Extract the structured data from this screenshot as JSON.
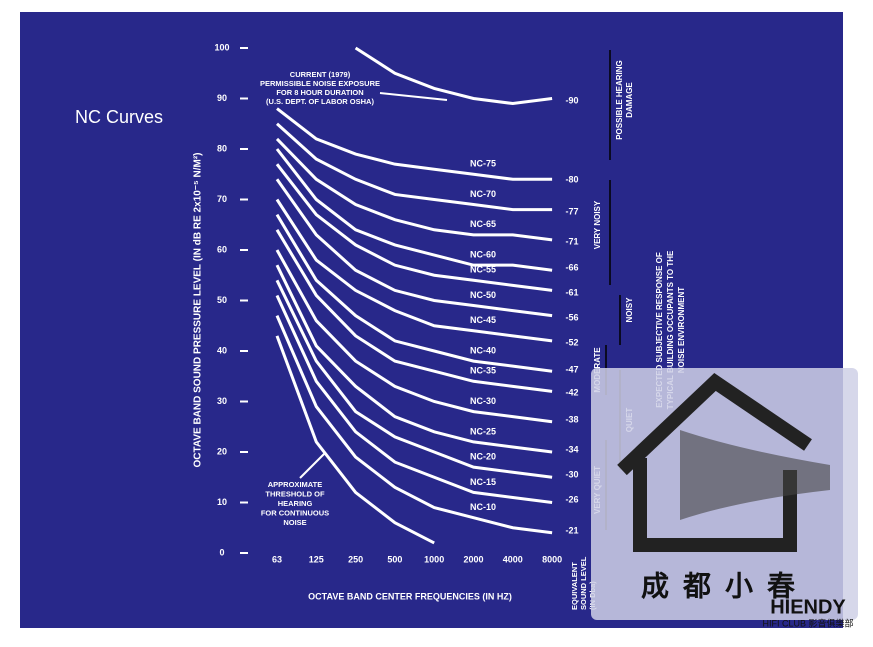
{
  "chart_data": {
    "type": "line",
    "title": "NC Curves",
    "x_label": "OCTAVE BAND CENTER FREQUENCIES (IN HZ)",
    "y_label": "OCTAVE BAND SOUND PRESSURE LEVEL (IN dB RE 2x10⁻⁵ N/M²)",
    "categories": [
      "63",
      "125",
      "250",
      "500",
      "1000",
      "2000",
      "4000",
      "8000"
    ],
    "ylim": [
      0,
      100
    ],
    "yticks": [
      0,
      10,
      20,
      30,
      40,
      50,
      60,
      70,
      80,
      90,
      100
    ],
    "series": [
      {
        "name": "NC-75",
        "color": "#ffffff",
        "values": [
          88,
          82,
          79,
          77,
          76,
          75,
          74,
          74
        ]
      },
      {
        "name": "NC-70",
        "color": "#ffffff",
        "values": [
          85,
          78,
          74,
          71,
          70,
          69,
          68,
          68
        ]
      },
      {
        "name": "NC-65",
        "color": "#ffffff",
        "values": [
          82,
          74,
          69,
          66,
          64,
          63,
          63,
          62
        ]
      },
      {
        "name": "NC-60",
        "color": "#ffffff",
        "values": [
          80,
          70,
          64,
          61,
          59,
          57,
          57,
          56
        ]
      },
      {
        "name": "NC-55",
        "color": "#ffffff",
        "values": [
          77,
          67,
          61,
          57,
          55,
          54,
          53,
          52
        ]
      },
      {
        "name": "NC-50",
        "color": "#ffffff",
        "values": [
          74,
          63,
          56,
          52,
          50,
          49,
          48,
          47
        ]
      },
      {
        "name": "NC-45",
        "color": "#ffffff",
        "values": [
          70,
          58,
          52,
          48,
          45,
          44,
          43,
          42
        ]
      },
      {
        "name": "NC-40",
        "color": "#ffffff",
        "values": [
          67,
          54,
          47,
          42,
          40,
          38,
          37,
          36
        ]
      },
      {
        "name": "NC-35",
        "color": "#ffffff",
        "values": [
          64,
          51,
          43,
          38,
          36,
          34,
          33,
          32
        ]
      },
      {
        "name": "NC-30",
        "color": "#ffffff",
        "values": [
          60,
          46,
          38,
          33,
          30,
          28,
          27,
          26
        ]
      },
      {
        "name": "NC-25",
        "color": "#ffffff",
        "values": [
          57,
          41,
          33,
          27,
          24,
          22,
          21,
          20
        ]
      },
      {
        "name": "NC-20",
        "color": "#ffffff",
        "values": [
          54,
          38,
          28,
          23,
          20,
          17,
          16,
          15
        ]
      },
      {
        "name": "NC-15",
        "color": "#ffffff",
        "values": [
          51,
          34,
          24,
          18,
          15,
          12,
          11,
          10
        ]
      },
      {
        "name": "NC-10",
        "color": "#ffffff",
        "values": [
          47,
          29,
          19,
          13,
          9,
          7,
          5,
          4
        ]
      }
    ],
    "osha_limit": {
      "label_lines": [
        "CURRENT (1979)",
        "PERMISSIBLE NOISE EXPOSURE",
        "FOR 8 HOUR DURATION",
        "(U.S. DEPT. OF LABOR OSHA)"
      ],
      "values": [
        null,
        null,
        100,
        95,
        92,
        90,
        89,
        90
      ]
    },
    "hearing_threshold": {
      "label_lines": [
        "APPROXIMATE",
        "THRESHOLD OF",
        "HEARING",
        "FOR CONTINUOUS",
        "NOISE"
      ],
      "values": [
        43,
        22,
        12,
        6,
        2,
        null,
        null,
        null
      ]
    },
    "equivalent_levels": {
      "label_lines": [
        "EQUIVALENT",
        "SOUND LEVEL",
        "(IN Dba)"
      ],
      "labels": [
        "-90",
        "-80",
        "-77",
        "-71",
        "-66",
        "-61",
        "-56",
        "-52",
        "-47",
        "-42",
        "-38",
        "-34",
        "-30",
        "-26",
        "-21"
      ]
    },
    "response": {
      "title_lines": [
        "EXPECTED SUBJECTIVE RESPONSE OF",
        "TYPICAL BUILDING OCCUPANTS TO THE",
        "NOISE ENVIRONMENT"
      ],
      "zones": [
        [
          "POSSIBLE HEARING",
          "DAMAGE"
        ],
        [
          "VERY NOISY"
        ],
        [
          "NOISY"
        ],
        [
          "MODERATE"
        ],
        [
          "QUIET"
        ],
        [
          "VERY QUIET"
        ]
      ]
    },
    "watermark": {
      "text": "成都小春",
      "brand": "HIENDY",
      "sub": "HIFI CLUB 影音俱樂部"
    }
  }
}
